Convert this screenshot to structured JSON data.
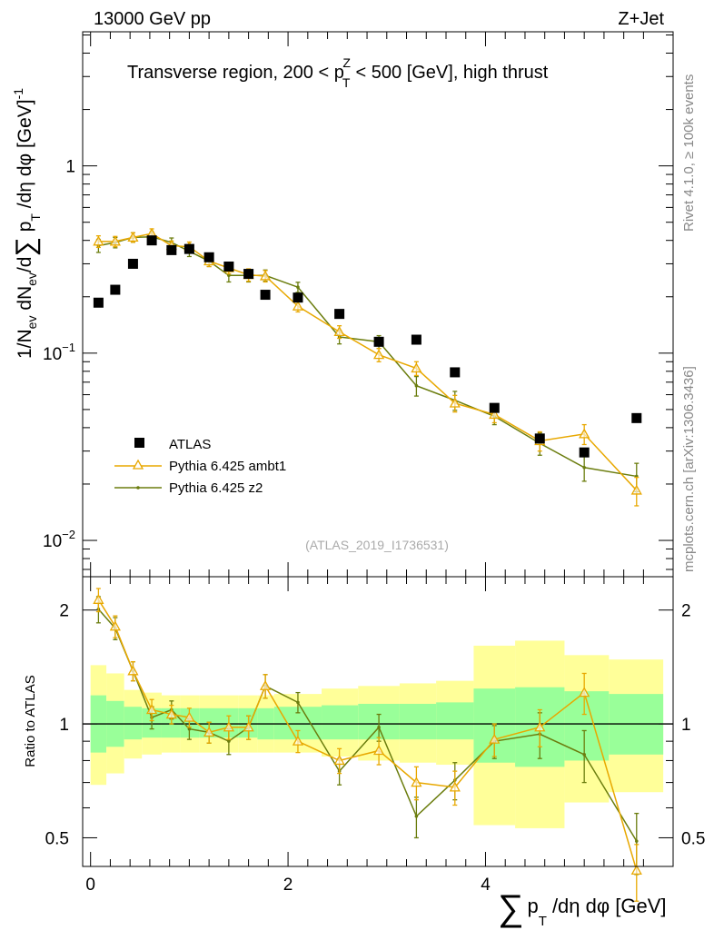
{
  "header": {
    "left": "13000 GeV pp",
    "right": "Z+Jet"
  },
  "chart_data": [
    {
      "type": "scatter",
      "panel": "main",
      "title": "Transverse region, 200 < p_T^Z < 500 [GeV], high thrust",
      "title_parts": {
        "pre": "Transverse region, 200 < p",
        "sup": "Z",
        "sub": "T",
        "post": " < 500 [GeV], high thrust"
      },
      "ylabel": "1/N_ev dN_ev/d∑ p_T /dη dφ [GeV]^-1",
      "ylabel_parts": {
        "a": "1/N",
        "ev1": "ev",
        "b": " dN",
        "ev2": "ev",
        "c": "/d",
        "sum": "∑",
        "d": " p",
        "T": "T",
        "e": " /dη dφ  [GeV]",
        "exp": "-1"
      },
      "yscale": "log",
      "ylim": [
        0.0064,
        5.2
      ],
      "xlim": [
        -0.08,
        5.9
      ],
      "yticks": [
        {
          "v": 1,
          "base": "1",
          "exp": ""
        },
        {
          "v": 0.1,
          "base": "10",
          "exp": "−1"
        },
        {
          "v": 0.01,
          "base": "10",
          "exp": "−2"
        }
      ],
      "legend_position": "bottom-left",
      "legend": [
        {
          "name": "ATLAS",
          "marker": "square"
        },
        {
          "name": "Pythia 6.425 ambt1",
          "marker": "triangle"
        },
        {
          "name": "Pythia 6.425 z2",
          "marker": "dot"
        }
      ],
      "watermark": "(ATLAS_2019_I1736531)",
      "side_labels": {
        "top": "Rivet 4.1.0, ≥ 100k events",
        "bottom": "mcplots.cern.ch [arXiv:1306.3436]"
      },
      "series": [
        {
          "name": "ATLAS",
          "color": "#000000",
          "x": [
            0.08,
            0.25,
            0.43,
            0.62,
            0.82,
            1.0,
            1.2,
            1.4,
            1.6,
            1.77,
            2.1,
            2.52,
            2.92,
            3.3,
            3.69,
            4.09,
            4.55,
            5.0,
            5.53
          ],
          "y": [
            0.186,
            0.218,
            0.3,
            0.4,
            0.355,
            0.36,
            0.325,
            0.29,
            0.265,
            0.205,
            0.198,
            0.162,
            0.115,
            0.118,
            0.079,
            0.051,
            0.035,
            0.0295,
            0.045
          ]
        },
        {
          "name": "Pythia 6.425 ambt1",
          "color": "#e8a800",
          "x": [
            0.08,
            0.25,
            0.43,
            0.62,
            0.82,
            1.0,
            1.2,
            1.4,
            1.6,
            1.77,
            2.1,
            2.52,
            2.92,
            3.3,
            3.69,
            4.09,
            4.55,
            5.0,
            5.53
          ],
          "y": [
            0.395,
            0.395,
            0.415,
            0.435,
            0.375,
            0.37,
            0.31,
            0.285,
            0.262,
            0.258,
            0.178,
            0.13,
            0.098,
            0.083,
            0.054,
            0.047,
            0.034,
            0.037,
            0.0185
          ],
          "err": [
            0.028,
            0.025,
            0.024,
            0.026,
            0.022,
            0.022,
            0.02,
            0.02,
            0.02,
            0.018,
            0.012,
            0.01,
            0.008,
            0.007,
            0.0055,
            0.0045,
            0.004,
            0.0045,
            0.0032
          ]
        },
        {
          "name": "Pythia 6.425 z2",
          "color": "#6b7d0e",
          "x": [
            0.08,
            0.25,
            0.43,
            0.62,
            0.82,
            1.0,
            1.2,
            1.4,
            1.6,
            1.77,
            2.1,
            2.52,
            2.92,
            3.3,
            3.69,
            4.09,
            4.55,
            5.0,
            5.53
          ],
          "y": [
            0.375,
            0.39,
            0.415,
            0.418,
            0.39,
            0.35,
            0.31,
            0.26,
            0.26,
            0.26,
            0.225,
            0.122,
            0.115,
            0.067,
            0.056,
            0.046,
            0.033,
            0.0245,
            0.022
          ],
          "err": [
            0.03,
            0.025,
            0.024,
            0.025,
            0.022,
            0.022,
            0.02,
            0.02,
            0.02,
            0.018,
            0.014,
            0.01,
            0.009,
            0.008,
            0.0065,
            0.0045,
            0.0045,
            0.0038,
            0.0038
          ]
        }
      ]
    },
    {
      "type": "line",
      "panel": "ratio",
      "ylabel": "Ratio to ATLAS",
      "yscale": "log",
      "ylim": [
        0.42,
        2.45
      ],
      "xlim": [
        -0.08,
        5.9
      ],
      "yticks": [
        2,
        1,
        0.5
      ],
      "xticks": [
        0,
        2,
        4
      ],
      "xlabel": "∑ p_T /dη dφ [GeV]",
      "xlabel_parts": {
        "sum": "∑",
        "p": "p",
        "T": "T",
        "rest": "/dη dφ [GeV]"
      },
      "reference": 1,
      "bin_edges": [
        0,
        0.16,
        0.34,
        0.52,
        0.72,
        0.91,
        1.1,
        1.3,
        1.5,
        1.69,
        1.86,
        2.34,
        2.71,
        3.13,
        3.5,
        3.88,
        4.3,
        4.8,
        5.25,
        5.8
      ],
      "band_inner": {
        "color": "#99ff99",
        "low": [
          0.84,
          0.87,
          0.91,
          0.92,
          0.92,
          0.92,
          0.92,
          0.92,
          0.92,
          0.91,
          0.91,
          0.91,
          0.91,
          0.91,
          0.91,
          0.79,
          0.77,
          0.8,
          0.83
        ],
        "high": [
          1.19,
          1.15,
          1.11,
          1.1,
          1.1,
          1.1,
          1.1,
          1.1,
          1.1,
          1.1,
          1.11,
          1.12,
          1.13,
          1.13,
          1.14,
          1.24,
          1.25,
          1.22,
          1.2
        ]
      },
      "band_outer": {
        "color": "#ffff99",
        "low": [
          0.69,
          0.74,
          0.81,
          0.83,
          0.84,
          0.84,
          0.84,
          0.84,
          0.84,
          0.84,
          0.84,
          0.82,
          0.8,
          0.79,
          0.78,
          0.54,
          0.53,
          0.62,
          0.66
        ],
        "high": [
          1.43,
          1.36,
          1.23,
          1.21,
          1.19,
          1.19,
          1.19,
          1.19,
          1.19,
          1.19,
          1.2,
          1.24,
          1.26,
          1.28,
          1.3,
          1.61,
          1.66,
          1.52,
          1.48
        ]
      },
      "series": [
        {
          "name": "Pythia 6.425 ambt1",
          "color": "#e8a800",
          "x": [
            0.08,
            0.25,
            0.43,
            0.62,
            0.82,
            1.0,
            1.2,
            1.4,
            1.6,
            1.77,
            2.1,
            2.52,
            2.92,
            3.3,
            3.69,
            4.09,
            4.55,
            5.0,
            5.53
          ],
          "y": [
            2.13,
            1.81,
            1.38,
            1.09,
            1.06,
            1.04,
            0.95,
            0.98,
            0.98,
            1.26,
            0.9,
            0.8,
            0.85,
            0.7,
            0.68,
            0.91,
            0.98,
            1.21,
            0.41
          ],
          "err": [
            0.15,
            0.12,
            0.08,
            0.07,
            0.06,
            0.06,
            0.06,
            0.07,
            0.07,
            0.09,
            0.06,
            0.06,
            0.07,
            0.07,
            0.07,
            0.09,
            0.11,
            0.15,
            0.07
          ]
        },
        {
          "name": "Pythia 6.425 z2",
          "color": "#6b7d0e",
          "x": [
            0.08,
            0.25,
            0.43,
            0.62,
            0.82,
            1.0,
            1.2,
            1.4,
            1.6,
            1.77,
            2.1,
            2.52,
            2.92,
            3.3,
            3.69,
            4.09,
            4.55,
            5.0,
            5.53
          ],
          "y": [
            2.01,
            1.79,
            1.38,
            1.04,
            1.09,
            0.97,
            0.95,
            0.9,
            0.98,
            1.26,
            1.14,
            0.75,
            0.98,
            0.57,
            0.71,
            0.9,
            0.94,
            0.83,
            0.49
          ],
          "err": [
            0.16,
            0.12,
            0.08,
            0.07,
            0.06,
            0.06,
            0.06,
            0.07,
            0.07,
            0.09,
            0.07,
            0.06,
            0.08,
            0.07,
            0.08,
            0.09,
            0.13,
            0.13,
            0.09
          ]
        }
      ]
    }
  ]
}
